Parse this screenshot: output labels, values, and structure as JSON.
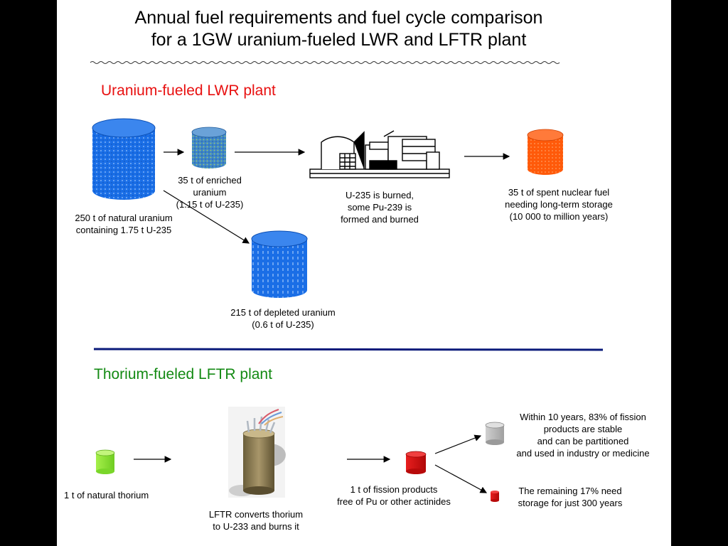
{
  "title_line1": "Annual fuel requirements and fuel cycle comparison",
  "title_line2": "for a 1GW uranium-fueled LWR and LFTR plant",
  "uranium_section": {
    "heading": "Uranium-fueled LWR plant",
    "natural": [
      "250 t of natural uranium",
      "containing 1.75 t U-235"
    ],
    "enriched": [
      "35 t of enriched uranium",
      "(1.15 t of U-235)"
    ],
    "burned": [
      "U-235 is burned,",
      "some Pu-239 is",
      "formed and burned"
    ],
    "spent": [
      "35 t of spent nuclear fuel",
      "needing long-term storage",
      "(10 000 to million years)"
    ],
    "depleted": [
      "215 t of depleted uranium",
      "(0.6 t of U-235)"
    ]
  },
  "thorium_section": {
    "heading": "Thorium-fueled LFTR plant",
    "natural": [
      "1 t of natural thorium"
    ],
    "reactor": [
      "LFTR converts thorium",
      "to U-233 and burns it"
    ],
    "fission": [
      "1 t of fission products",
      "free of Pu or other actinides"
    ],
    "stable": [
      "Within 10 years, 83% of fission",
      "products are stable",
      "and can be partitioned",
      "and used in industry or medicine"
    ],
    "remaining": [
      "The remaining 17% need",
      "storage for just 300 years"
    ]
  },
  "colors": {
    "uranium_heading": "#e81010",
    "thorium_heading": "#138a13",
    "natural_uranium": "#1565e0",
    "enriched_uranium": "#4a88c8",
    "spent_fuel": "#ff5a0a",
    "thorium": "#8ee83a",
    "fission_products": "#d81010",
    "stable_products": "#b8b8b8",
    "divider": "#0a1a7a"
  }
}
